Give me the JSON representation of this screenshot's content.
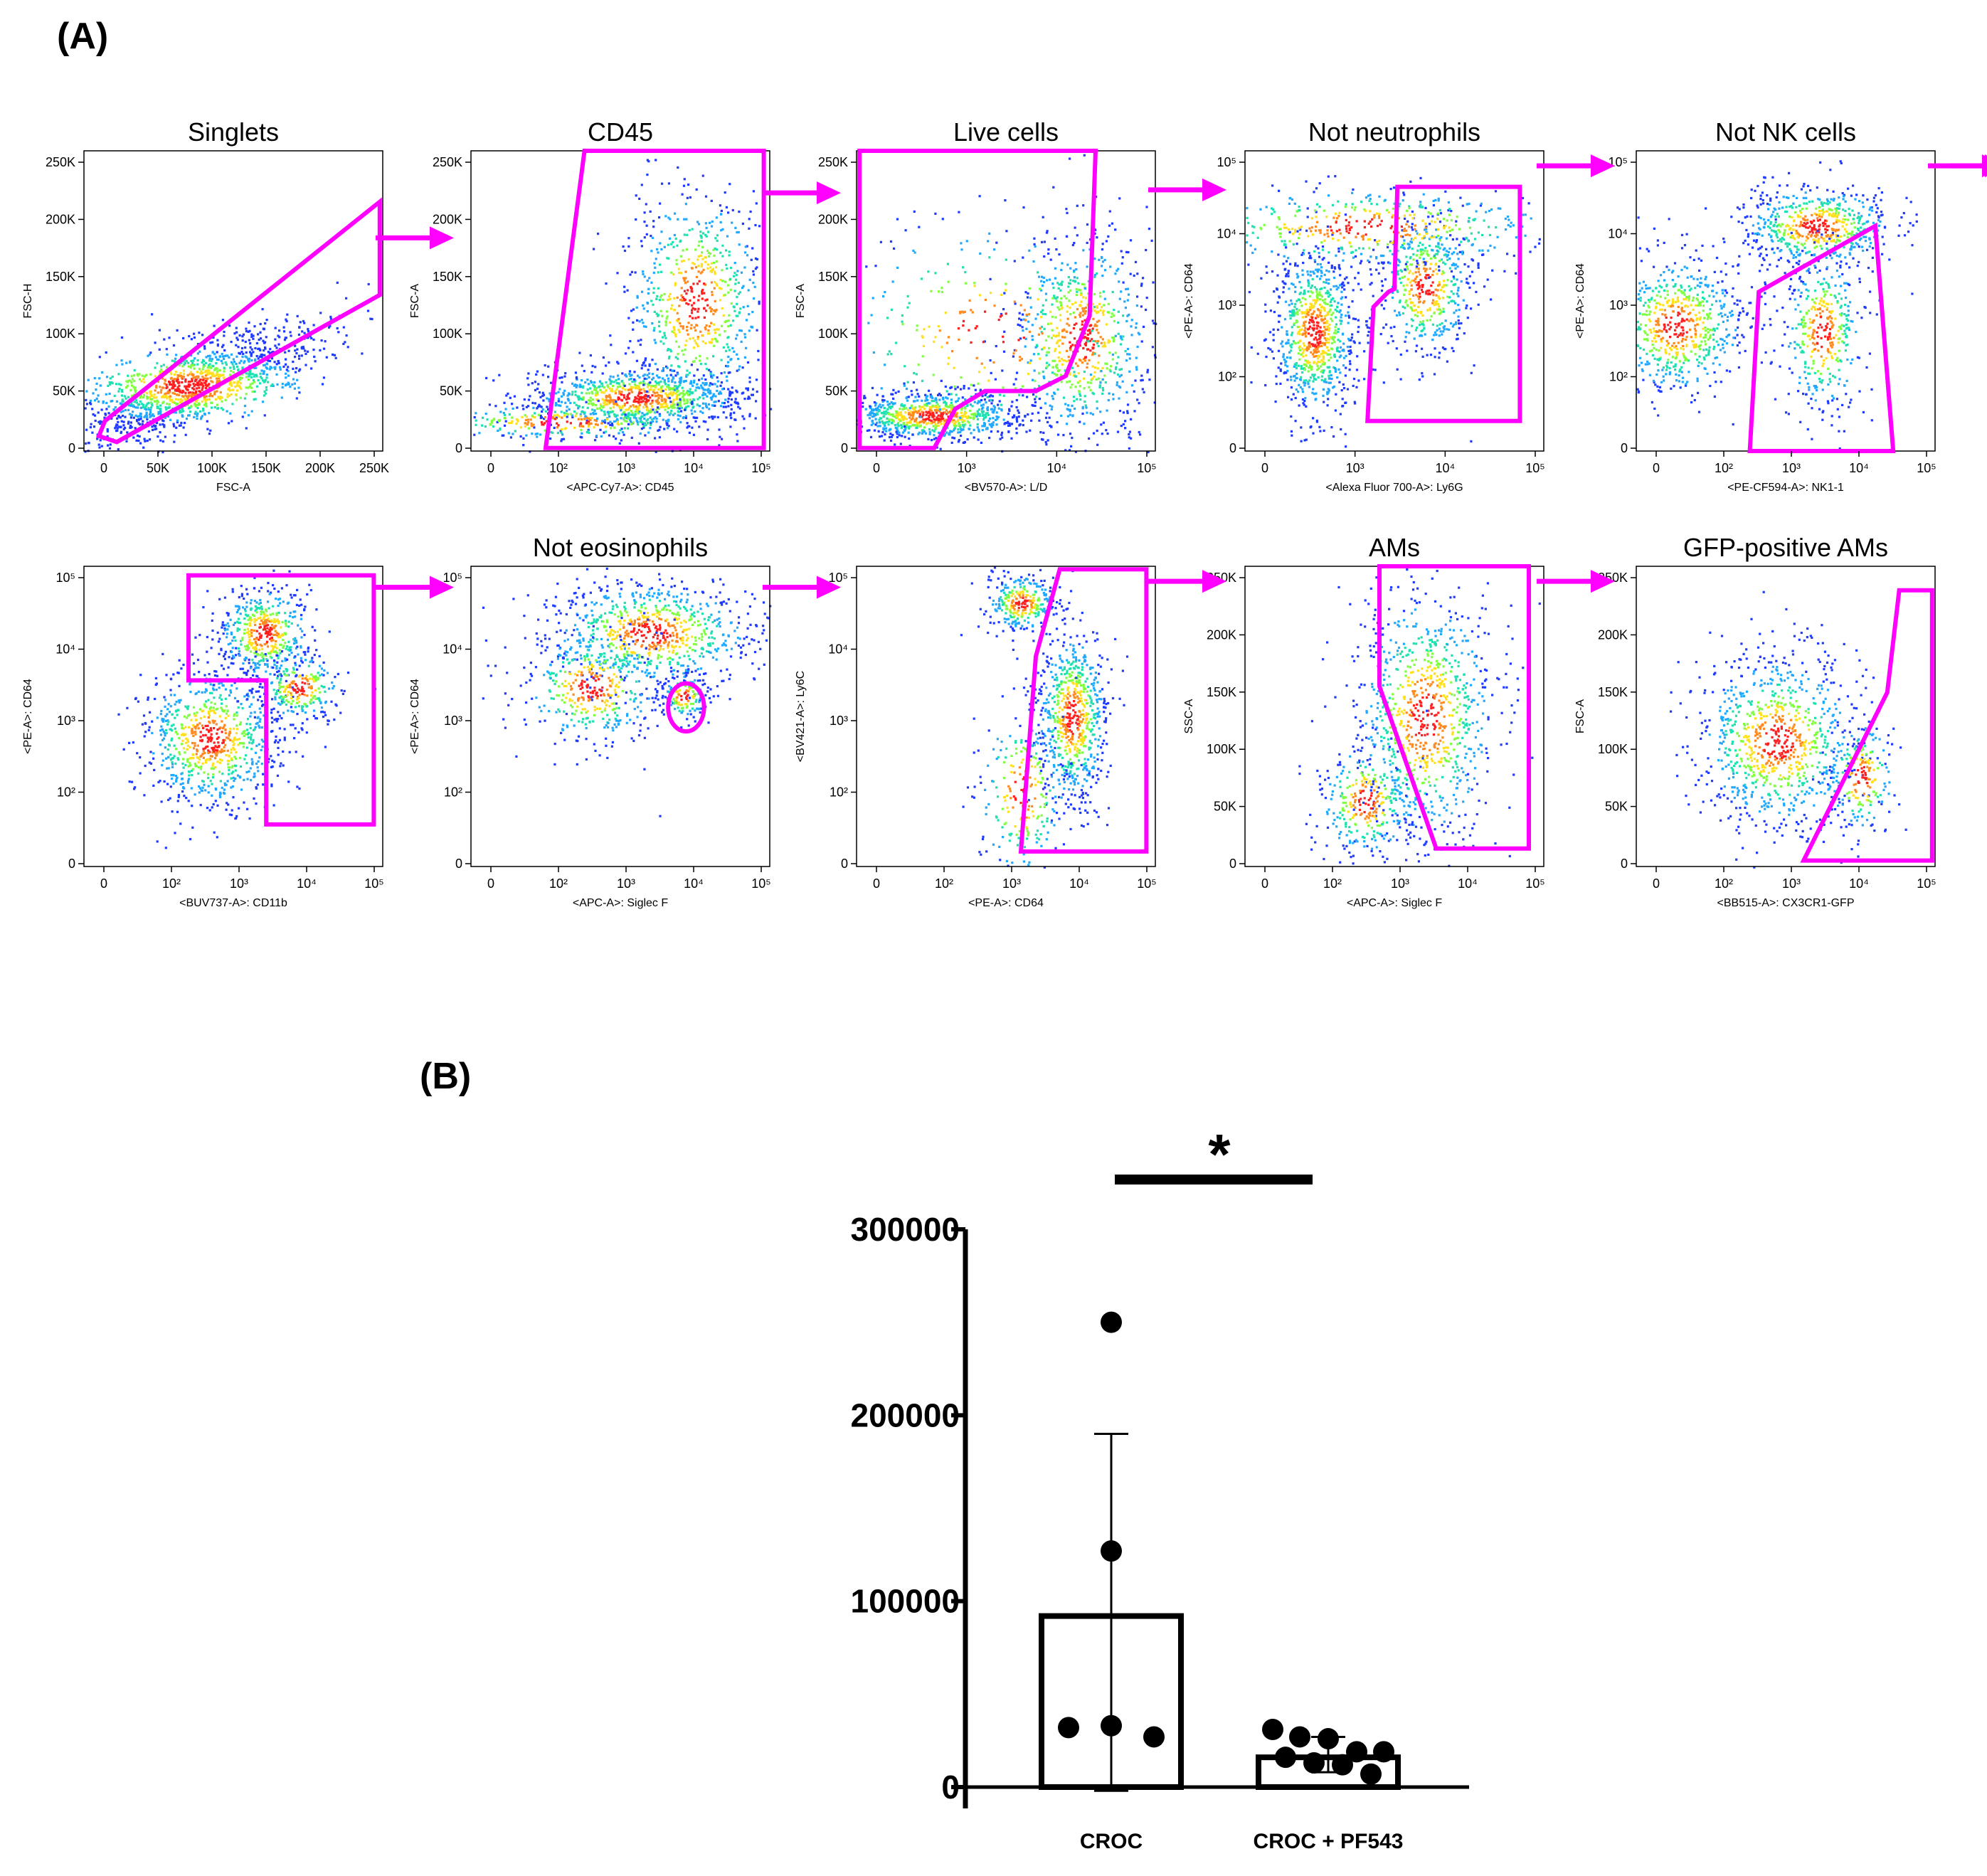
{
  "panels": {
    "a_label": "(A)",
    "b_label": "(B)"
  },
  "colors": {
    "gate": "#ff00ff",
    "axis": "#000000",
    "bar": "#000000"
  },
  "chart_data": [
    {
      "type": "scatter",
      "panel": "A",
      "description_type": "flow_cytometry_gating",
      "plots": [
        {
          "title": "Singlets",
          "xlabel": "FSC-A",
          "ylabel": "FSC-H",
          "xticks": [
            "0",
            "50K",
            "100K",
            "150K",
            "200K",
            "250K"
          ],
          "yticks": [
            "0",
            "50K",
            "100K",
            "150K",
            "200K",
            "250K"
          ]
        },
        {
          "title": "CD45",
          "xlabel": "<APC-Cy7-A>: CD45",
          "ylabel": "FSC-A",
          "xticks": [
            "0",
            "10²",
            "10³",
            "10⁴",
            "10⁵"
          ],
          "yticks": [
            "0",
            "50K",
            "100K",
            "150K",
            "200K",
            "250K"
          ]
        },
        {
          "title": "Live cells",
          "xlabel": "<BV570-A>: L/D",
          "ylabel": "FSC-A",
          "xticks": [
            "0",
            "10³",
            "10⁴",
            "10⁵"
          ],
          "yticks": [
            "0",
            "50K",
            "100K",
            "150K",
            "200K",
            "250K"
          ]
        },
        {
          "title": "Not neutrophils",
          "xlabel": "<Alexa Fluor 700-A>: Ly6G",
          "ylabel": "<PE-A>: CD64",
          "xticks": [
            "0",
            "10³",
            "10⁴",
            "10⁵"
          ],
          "yticks": [
            "0",
            "10²",
            "10³",
            "10⁴",
            "10⁵"
          ]
        },
        {
          "title": "Not NK cells",
          "xlabel": "<PE-CF594-A>: NK1-1",
          "ylabel": "<PE-A>: CD64",
          "xticks": [
            "0",
            "10²",
            "10³",
            "10⁴",
            "10⁵"
          ],
          "yticks": [
            "0",
            "10²",
            "10³",
            "10⁴",
            "10⁵"
          ]
        },
        {
          "title": "",
          "xlabel": "<BUV737-A>: CD11b",
          "ylabel": "<PE-A>: CD64",
          "xticks": [
            "0",
            "10²",
            "10³",
            "10⁴",
            "10⁵"
          ],
          "yticks": [
            "0",
            "10²",
            "10³",
            "10⁴",
            "10⁵"
          ]
        },
        {
          "title": "Not eosinophils",
          "xlabel": "<APC-A>: Siglec F",
          "ylabel": "<PE-A>: CD64",
          "xticks": [
            "0",
            "10²",
            "10³",
            "10⁴",
            "10⁵"
          ],
          "yticks": [
            "0",
            "10²",
            "10³",
            "10⁴",
            "10⁵"
          ]
        },
        {
          "title": "",
          "xlabel": "<PE-A>: CD64",
          "ylabel": "<BV421-A>: Ly6C",
          "xticks": [
            "0",
            "10²",
            "10³",
            "10⁴",
            "10⁵"
          ],
          "yticks": [
            "0",
            "10²",
            "10³",
            "10⁴",
            "10⁵"
          ]
        },
        {
          "title": "AMs",
          "xlabel": "<APC-A>: Siglec F",
          "ylabel": "SSC-A",
          "xticks": [
            "0",
            "10²",
            "10³",
            "10⁴",
            "10⁵"
          ],
          "yticks": [
            "0",
            "50K",
            "100K",
            "150K",
            "200K",
            "250K"
          ]
        },
        {
          "title": "GFP-positive AMs",
          "xlabel": "<BB515-A>: CX3CR1-GFP",
          "ylabel": "FSC-A",
          "xticks": [
            "0",
            "10²",
            "10³",
            "10⁴",
            "10⁵"
          ],
          "yticks": [
            "0",
            "50K",
            "100K",
            "150K",
            "200K",
            "250K"
          ]
        }
      ]
    },
    {
      "type": "bar",
      "panel": "B",
      "categories": [
        "CROC",
        "CROC + PF543"
      ],
      "values": [
        92000,
        16000
      ],
      "error_bars": [
        [
          -2000,
          190000
        ],
        [
          8000,
          27000
        ]
      ],
      "points": [
        [
          250000,
          127000,
          33000,
          32000,
          27000
        ],
        [
          31000,
          27000,
          26000,
          19000,
          19000,
          16000,
          13000,
          12000,
          7000
        ]
      ],
      "ylim": [
        0,
        300000
      ],
      "yticks": [
        "0",
        "100000",
        "200000",
        "300000"
      ],
      "significance": "*",
      "title": "",
      "xlabel": "",
      "ylabel": ""
    }
  ]
}
